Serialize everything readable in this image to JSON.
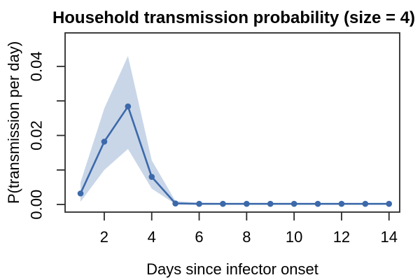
{
  "figure": {
    "title": "Household transmission probability (size = 4)",
    "xlabel": "Days since infector onset",
    "ylabel": "P(transmission per day)"
  },
  "chart_data": {
    "type": "line",
    "title": "Household transmission probability (size = 4)",
    "xlabel": "Days since infector onset",
    "ylabel": "P(transmission per day)",
    "x": [
      1,
      2,
      3,
      4,
      5,
      6,
      7,
      8,
      9,
      10,
      11,
      12,
      13,
      14
    ],
    "series": [
      {
        "name": "mean-transmission-probability",
        "values": [
          0.0032,
          0.0182,
          0.0284,
          0.008,
          0.0003,
          0.0002,
          0.0002,
          0.0002,
          0.0002,
          0.0002,
          0.0002,
          0.0002,
          0.0002,
          0.0002
        ]
      }
    ],
    "band": {
      "name": "confidence-interval",
      "lower": [
        0.0008,
        0.01,
        0.0161,
        0.0046,
        0.0001,
        0.0001,
        0.0001,
        0.0001,
        0.0001,
        0.0001,
        0.0001,
        0.0001,
        0.0001,
        0.0001
      ],
      "upper": [
        0.0064,
        0.0278,
        0.043,
        0.0128,
        0.001,
        0.0005,
        0.0004,
        0.0004,
        0.0004,
        0.0004,
        0.0004,
        0.0004,
        0.0004,
        0.0004
      ]
    },
    "x_ticks": {
      "values": [
        2,
        4,
        6,
        8,
        10,
        12,
        14
      ],
      "labels": [
        "2",
        "4",
        "6",
        "8",
        "10",
        "12",
        "14"
      ]
    },
    "y_ticks": {
      "values": [
        0,
        0.01,
        0.02,
        0.03,
        0.04
      ],
      "labels": [
        "0.00",
        "",
        "0.02",
        "",
        "0.04"
      ]
    },
    "xlim": [
      0.35,
      14.45
    ],
    "ylim": [
      -0.0022,
      0.0497
    ],
    "grid": false,
    "legend": "none",
    "colors": {
      "line": "#3c69aa",
      "marker": "#3c69aa",
      "band": "#c9d6e8",
      "axis": "#2b2b2b",
      "text": "#000000"
    }
  }
}
